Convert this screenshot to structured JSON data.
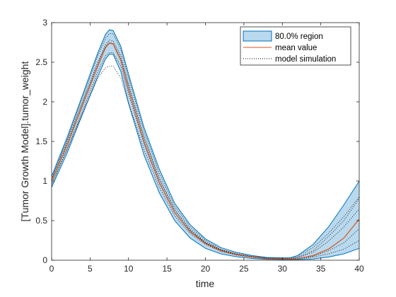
{
  "chart_data": {
    "type": "area",
    "xlabel": "time",
    "ylabel": "[Tumor Growth Model].tumor_weight",
    "xlim": [
      0,
      40
    ],
    "ylim": [
      0,
      3
    ],
    "xticks": [
      0,
      5,
      10,
      15,
      20,
      25,
      30,
      35,
      40
    ],
    "yticks": [
      0,
      0.5,
      1,
      1.5,
      2,
      2.5,
      3
    ],
    "ytick_labels": [
      "0",
      "0.5",
      "1",
      "1.5",
      "2",
      "2.5",
      "3"
    ],
    "grid": false,
    "legend_position": "top-right",
    "colors": {
      "region_fill": "#b9d9ee",
      "region_edge": "#0072bd",
      "mean": "#d95319",
      "simulation": "#000000"
    },
    "x": [
      0,
      2,
      4,
      6,
      7,
      7.5,
      8,
      9,
      10,
      12,
      14,
      16,
      18,
      20,
      22,
      24,
      26,
      28,
      30,
      31,
      32,
      34,
      36,
      38,
      40
    ],
    "series": [
      {
        "name": "mean value",
        "role": "mean",
        "values": [
          1.0,
          1.45,
          1.95,
          2.45,
          2.68,
          2.74,
          2.73,
          2.52,
          2.15,
          1.5,
          0.98,
          0.6,
          0.36,
          0.21,
          0.12,
          0.07,
          0.04,
          0.02,
          0.015,
          0.014,
          0.02,
          0.06,
          0.14,
          0.28,
          0.52
        ]
      },
      {
        "name": "80.0% region",
        "role": "upper",
        "values": [
          1.06,
          1.55,
          2.08,
          2.62,
          2.85,
          2.91,
          2.9,
          2.7,
          2.35,
          1.68,
          1.15,
          0.72,
          0.45,
          0.27,
          0.16,
          0.1,
          0.06,
          0.035,
          0.03,
          0.03,
          0.06,
          0.2,
          0.42,
          0.7,
          1.0
        ]
      },
      {
        "role": "lower",
        "values": [
          0.92,
          1.35,
          1.84,
          2.32,
          2.54,
          2.6,
          2.6,
          2.38,
          1.98,
          1.33,
          0.85,
          0.5,
          0.28,
          0.15,
          0.08,
          0.045,
          0.022,
          0.012,
          0.008,
          0.008,
          0.008,
          0.015,
          0.04,
          0.08,
          0.15
        ]
      },
      {
        "name": "model simulation",
        "role": "simulation",
        "values": [
          1.03,
          1.52,
          2.05,
          2.58,
          2.8,
          2.86,
          2.86,
          2.66,
          2.3,
          1.63,
          1.1,
          0.68,
          0.42,
          0.25,
          0.14,
          0.085,
          0.05,
          0.03,
          0.025,
          0.025,
          0.05,
          0.16,
          0.34,
          0.55,
          0.8
        ]
      },
      {
        "role": "simulation",
        "values": [
          0.95,
          1.4,
          1.88,
          2.38,
          2.58,
          2.62,
          2.62,
          2.45,
          2.1,
          1.47,
          0.97,
          0.6,
          0.37,
          0.22,
          0.13,
          0.075,
          0.045,
          0.025,
          0.018,
          0.016,
          0.03,
          0.1,
          0.24,
          0.42,
          0.65
        ]
      },
      {
        "role": "simulation",
        "values": [
          0.97,
          1.4,
          1.85,
          2.3,
          2.43,
          2.45,
          2.45,
          2.3,
          1.98,
          1.4,
          0.92,
          0.56,
          0.34,
          0.2,
          0.11,
          0.065,
          0.038,
          0.02,
          0.012,
          0.011,
          0.015,
          0.04,
          0.08,
          0.14,
          0.25
        ]
      },
      {
        "role": "simulation",
        "values": [
          1.0,
          1.47,
          1.98,
          2.48,
          2.72,
          2.78,
          2.77,
          2.58,
          2.22,
          1.55,
          1.02,
          0.63,
          0.38,
          0.22,
          0.125,
          0.072,
          0.042,
          0.022,
          0.014,
          0.013,
          0.018,
          0.05,
          0.12,
          0.22,
          0.4
        ]
      },
      {
        "role": "simulation",
        "values": [
          1.02,
          1.5,
          2.0,
          2.5,
          2.7,
          2.75,
          2.74,
          2.55,
          2.2,
          1.56,
          1.04,
          0.64,
          0.39,
          0.23,
          0.13,
          0.078,
          0.046,
          0.026,
          0.02,
          0.02,
          0.035,
          0.12,
          0.3,
          0.5,
          0.78
        ]
      }
    ]
  },
  "legend": {
    "region_label": "80.0% region",
    "mean_label": "mean value",
    "simulation_label": "model simulation"
  }
}
